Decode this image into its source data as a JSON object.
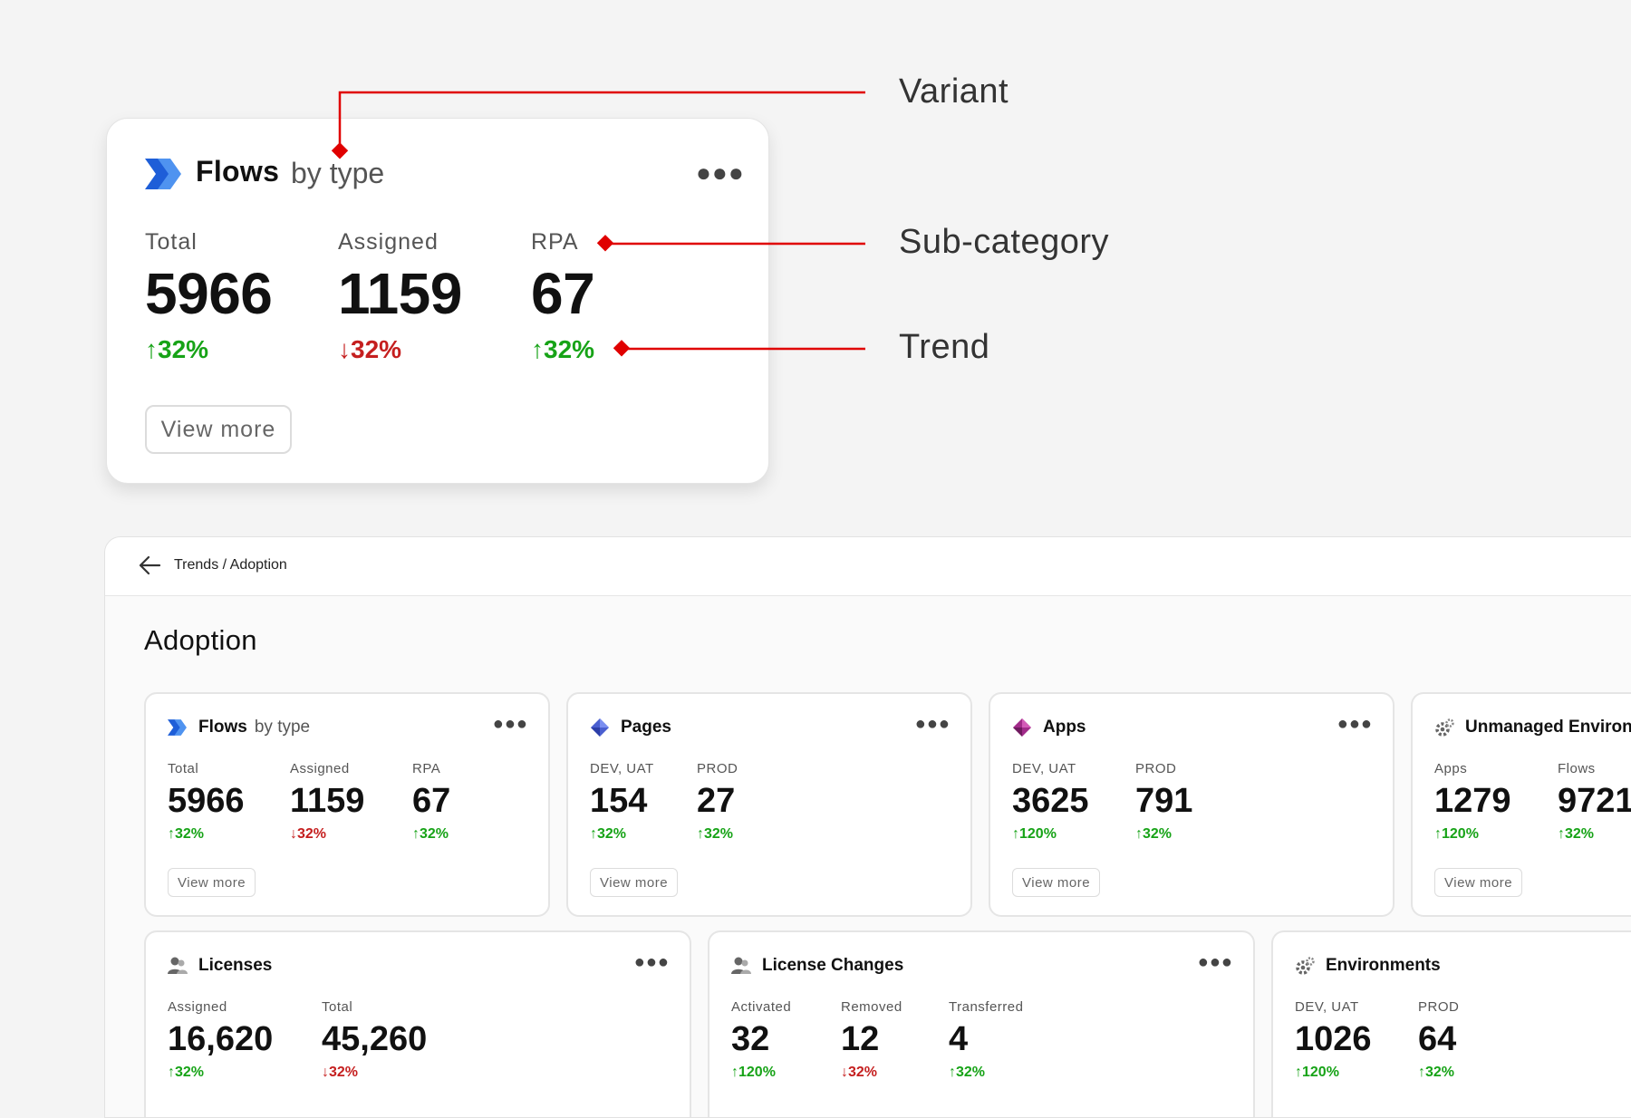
{
  "annotations": {
    "variant": "Variant",
    "subcategory": "Sub-category",
    "trend": "Trend"
  },
  "hero": {
    "title": "Flows",
    "variant": "by type",
    "more_icon": "more-dots-icon",
    "metrics": [
      {
        "label": "Total",
        "value": "5966",
        "trend": "↑32%",
        "direction": "up"
      },
      {
        "label": "Assigned",
        "value": "1159",
        "trend": "↓32%",
        "direction": "down"
      },
      {
        "label": "RPA",
        "value": "67",
        "trend": "↑32%",
        "direction": "up"
      }
    ],
    "view_more": "View more"
  },
  "dashboard": {
    "breadcrumb": "Trends / Adoption",
    "title": "Adoption",
    "cards": [
      {
        "title": "Flows",
        "variant": "by type",
        "icon": "flows-icon",
        "metrics": [
          {
            "label": "Total",
            "value": "5966",
            "trend": "↑32%"
          },
          {
            "label": "Assigned",
            "value": "1159",
            "trend": "↓32%"
          },
          {
            "label": "RPA",
            "value": "67",
            "trend": "↑32%"
          }
        ],
        "view_more": "View more"
      },
      {
        "title": "Pages",
        "icon": "pages-icon",
        "metrics": [
          {
            "label": "DEV, UAT",
            "value": "154",
            "trend": "↑32%"
          },
          {
            "label": "PROD",
            "value": "27",
            "trend": "↑32%"
          }
        ],
        "view_more": "View more"
      },
      {
        "title": "Apps",
        "icon": "apps-icon",
        "metrics": [
          {
            "label": "DEV, UAT",
            "value": "3625",
            "trend": "↑120%"
          },
          {
            "label": "PROD",
            "value": "791",
            "trend": "↑32%"
          }
        ],
        "view_more": "View more"
      },
      {
        "title": "Unmanaged Environ",
        "icon": "gear-icon",
        "metrics": [
          {
            "label": "Apps",
            "value": "1279",
            "trend": "↑120%"
          },
          {
            "label": "Flows",
            "value": "9721",
            "trend": "↑32%"
          }
        ],
        "view_more": "View more"
      },
      {
        "title": "Licenses",
        "icon": "users-icon",
        "metrics": [
          {
            "label": "Assigned",
            "value": "16,620",
            "trend": "↑32%"
          },
          {
            "label": "Total",
            "value": "45,260",
            "trend": "↓32%"
          }
        ]
      },
      {
        "title": "License Changes",
        "icon": "users-icon",
        "metrics": [
          {
            "label": "Activated",
            "value": "32",
            "trend": "↑120%"
          },
          {
            "label": "Removed",
            "value": "12",
            "trend": "↓32%"
          },
          {
            "label": "Transferred",
            "value": "4",
            "trend": "↑32%"
          }
        ]
      },
      {
        "title": "Environments",
        "icon": "gear-icon",
        "metrics": [
          {
            "label": "DEV, UAT",
            "value": "1026",
            "trend": "↑120%"
          },
          {
            "label": "PROD",
            "value": "64",
            "trend": "↑32%"
          }
        ]
      }
    ]
  },
  "colors": {
    "up": "#17a317",
    "down": "#c51f1f",
    "annotation": "#e00000"
  }
}
